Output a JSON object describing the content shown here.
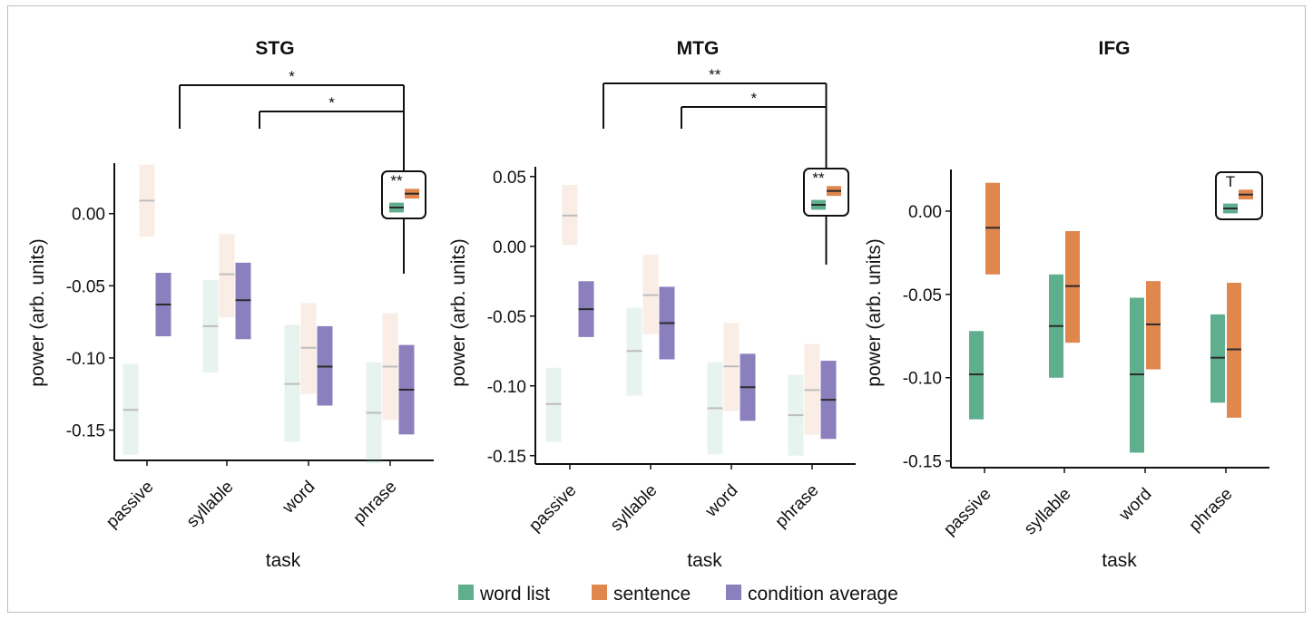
{
  "colors": {
    "word_list": "#5fae8d",
    "sentence": "#e0874e",
    "condition_average": "#8b7fbd",
    "median_line": "#2b2b2b",
    "faded_median_line": "#bdbdbd"
  },
  "legend": [
    {
      "key": "word_list",
      "label": "word list"
    },
    {
      "key": "sentence",
      "label": "sentence"
    },
    {
      "key": "condition_average",
      "label": "condition average"
    }
  ],
  "chart_data": [
    {
      "type": "box",
      "title": "STG",
      "xlabel": "task",
      "ylabel": "power (arb. units)",
      "categories": [
        "passive",
        "syllable",
        "word",
        "phrase"
      ],
      "yticks": [
        "0.00",
        "-0.05",
        "-0.10",
        "-0.15"
      ],
      "ytick_values": [
        0.0,
        -0.05,
        -0.1,
        -0.15
      ],
      "ylim": [
        -0.171,
        0.035
      ],
      "series_faded": {
        "word_list": true,
        "sentence": true,
        "condition_average": false
      },
      "series": [
        {
          "key": "word_list",
          "boxes": [
            {
              "low": -0.167,
              "high": -0.104,
              "mid": -0.136
            },
            {
              "low": -0.11,
              "high": -0.046,
              "mid": -0.078
            },
            {
              "low": -0.158,
              "high": -0.077,
              "mid": -0.118
            },
            {
              "low": -0.173,
              "high": -0.103,
              "mid": -0.138
            }
          ]
        },
        {
          "key": "sentence",
          "boxes": [
            {
              "low": -0.016,
              "high": 0.034,
              "mid": 0.009
            },
            {
              "low": -0.072,
              "high": -0.014,
              "mid": -0.042
            },
            {
              "low": -0.125,
              "high": -0.062,
              "mid": -0.093
            },
            {
              "low": -0.143,
              "high": -0.069,
              "mid": -0.106
            }
          ]
        },
        {
          "key": "condition_average",
          "boxes": [
            {
              "low": -0.085,
              "high": -0.041,
              "mid": -0.063
            },
            {
              "low": -0.087,
              "high": -0.034,
              "mid": -0.06
            },
            {
              "low": -0.133,
              "high": -0.078,
              "mid": -0.106
            },
            {
              "low": -0.153,
              "high": -0.091,
              "mid": -0.122
            }
          ]
        }
      ],
      "inset": {
        "label": "**",
        "word_list": {
          "low": -0.3,
          "high": 0.3,
          "mid": 0.0
        },
        "sentence": {
          "low": 0.55,
          "high": 1.15,
          "mid": 0.85
        }
      },
      "brackets": [
        {
          "label": "*",
          "from": "passive",
          "to": "inset"
        },
        {
          "label": "*",
          "from": "syllable",
          "to": "inset"
        }
      ]
    },
    {
      "type": "box",
      "title": "MTG",
      "xlabel": "task",
      "ylabel": "power (arb. units)",
      "categories": [
        "passive",
        "syllable",
        "word",
        "phrase"
      ],
      "yticks": [
        "0.05",
        "0.00",
        "-0.05",
        "-0.10",
        "-0.15"
      ],
      "ytick_values": [
        0.05,
        0.0,
        -0.05,
        -0.1,
        -0.15
      ],
      "ylim": [
        -0.156,
        0.057
      ],
      "series_faded": {
        "word_list": true,
        "sentence": true,
        "condition_average": false
      },
      "series": [
        {
          "key": "word_list",
          "boxes": [
            {
              "low": -0.14,
              "high": -0.087,
              "mid": -0.113
            },
            {
              "low": -0.107,
              "high": -0.044,
              "mid": -0.075
            },
            {
              "low": -0.149,
              "high": -0.083,
              "mid": -0.116
            },
            {
              "low": -0.15,
              "high": -0.092,
              "mid": -0.121
            }
          ]
        },
        {
          "key": "sentence",
          "boxes": [
            {
              "low": 0.001,
              "high": 0.044,
              "mid": 0.022
            },
            {
              "low": -0.063,
              "high": -0.006,
              "mid": -0.035
            },
            {
              "low": -0.118,
              "high": -0.055,
              "mid": -0.086
            },
            {
              "low": -0.135,
              "high": -0.07,
              "mid": -0.103
            }
          ]
        },
        {
          "key": "condition_average",
          "boxes": [
            {
              "low": -0.065,
              "high": -0.025,
              "mid": -0.045
            },
            {
              "low": -0.081,
              "high": -0.029,
              "mid": -0.055
            },
            {
              "low": -0.125,
              "high": -0.077,
              "mid": -0.101
            },
            {
              "low": -0.138,
              "high": -0.082,
              "mid": -0.11
            }
          ]
        }
      ],
      "inset": {
        "label": "**",
        "word_list": {
          "low": -0.3,
          "high": 0.3,
          "mid": 0.0
        },
        "sentence": {
          "low": 0.55,
          "high": 1.15,
          "mid": 0.85
        }
      },
      "brackets": [
        {
          "label": "**",
          "from": "passive",
          "to": "inset"
        },
        {
          "label": "*",
          "from": "syllable",
          "to": "inset"
        }
      ]
    },
    {
      "type": "box",
      "title": "IFG",
      "xlabel": "task",
      "ylabel": "power (arb. units)",
      "categories": [
        "passive",
        "syllable",
        "word",
        "phrase"
      ],
      "yticks": [
        "0.00",
        "-0.05",
        "-0.10",
        "-0.15"
      ],
      "ytick_values": [
        0.0,
        -0.05,
        -0.1,
        -0.15
      ],
      "ylim": [
        -0.154,
        0.025
      ],
      "series_faded": {
        "word_list": false,
        "sentence": false
      },
      "series": [
        {
          "key": "word_list",
          "boxes": [
            {
              "low": -0.125,
              "high": -0.072,
              "mid": -0.098
            },
            {
              "low": -0.1,
              "high": -0.038,
              "mid": -0.069
            },
            {
              "low": -0.145,
              "high": -0.052,
              "mid": -0.098
            },
            {
              "low": -0.115,
              "high": -0.062,
              "mid": -0.088
            }
          ]
        },
        {
          "key": "sentence",
          "boxes": [
            {
              "low": -0.038,
              "high": 0.017,
              "mid": -0.01
            },
            {
              "low": -0.079,
              "high": -0.012,
              "mid": -0.045
            },
            {
              "low": -0.095,
              "high": -0.042,
              "mid": -0.068
            },
            {
              "low": -0.124,
              "high": -0.043,
              "mid": -0.083
            }
          ]
        }
      ],
      "inset": {
        "label": "T",
        "word_list": {
          "low": -0.3,
          "high": 0.3,
          "mid": 0.0
        },
        "sentence": {
          "low": 0.55,
          "high": 1.15,
          "mid": 0.85
        }
      },
      "brackets": []
    }
  ]
}
